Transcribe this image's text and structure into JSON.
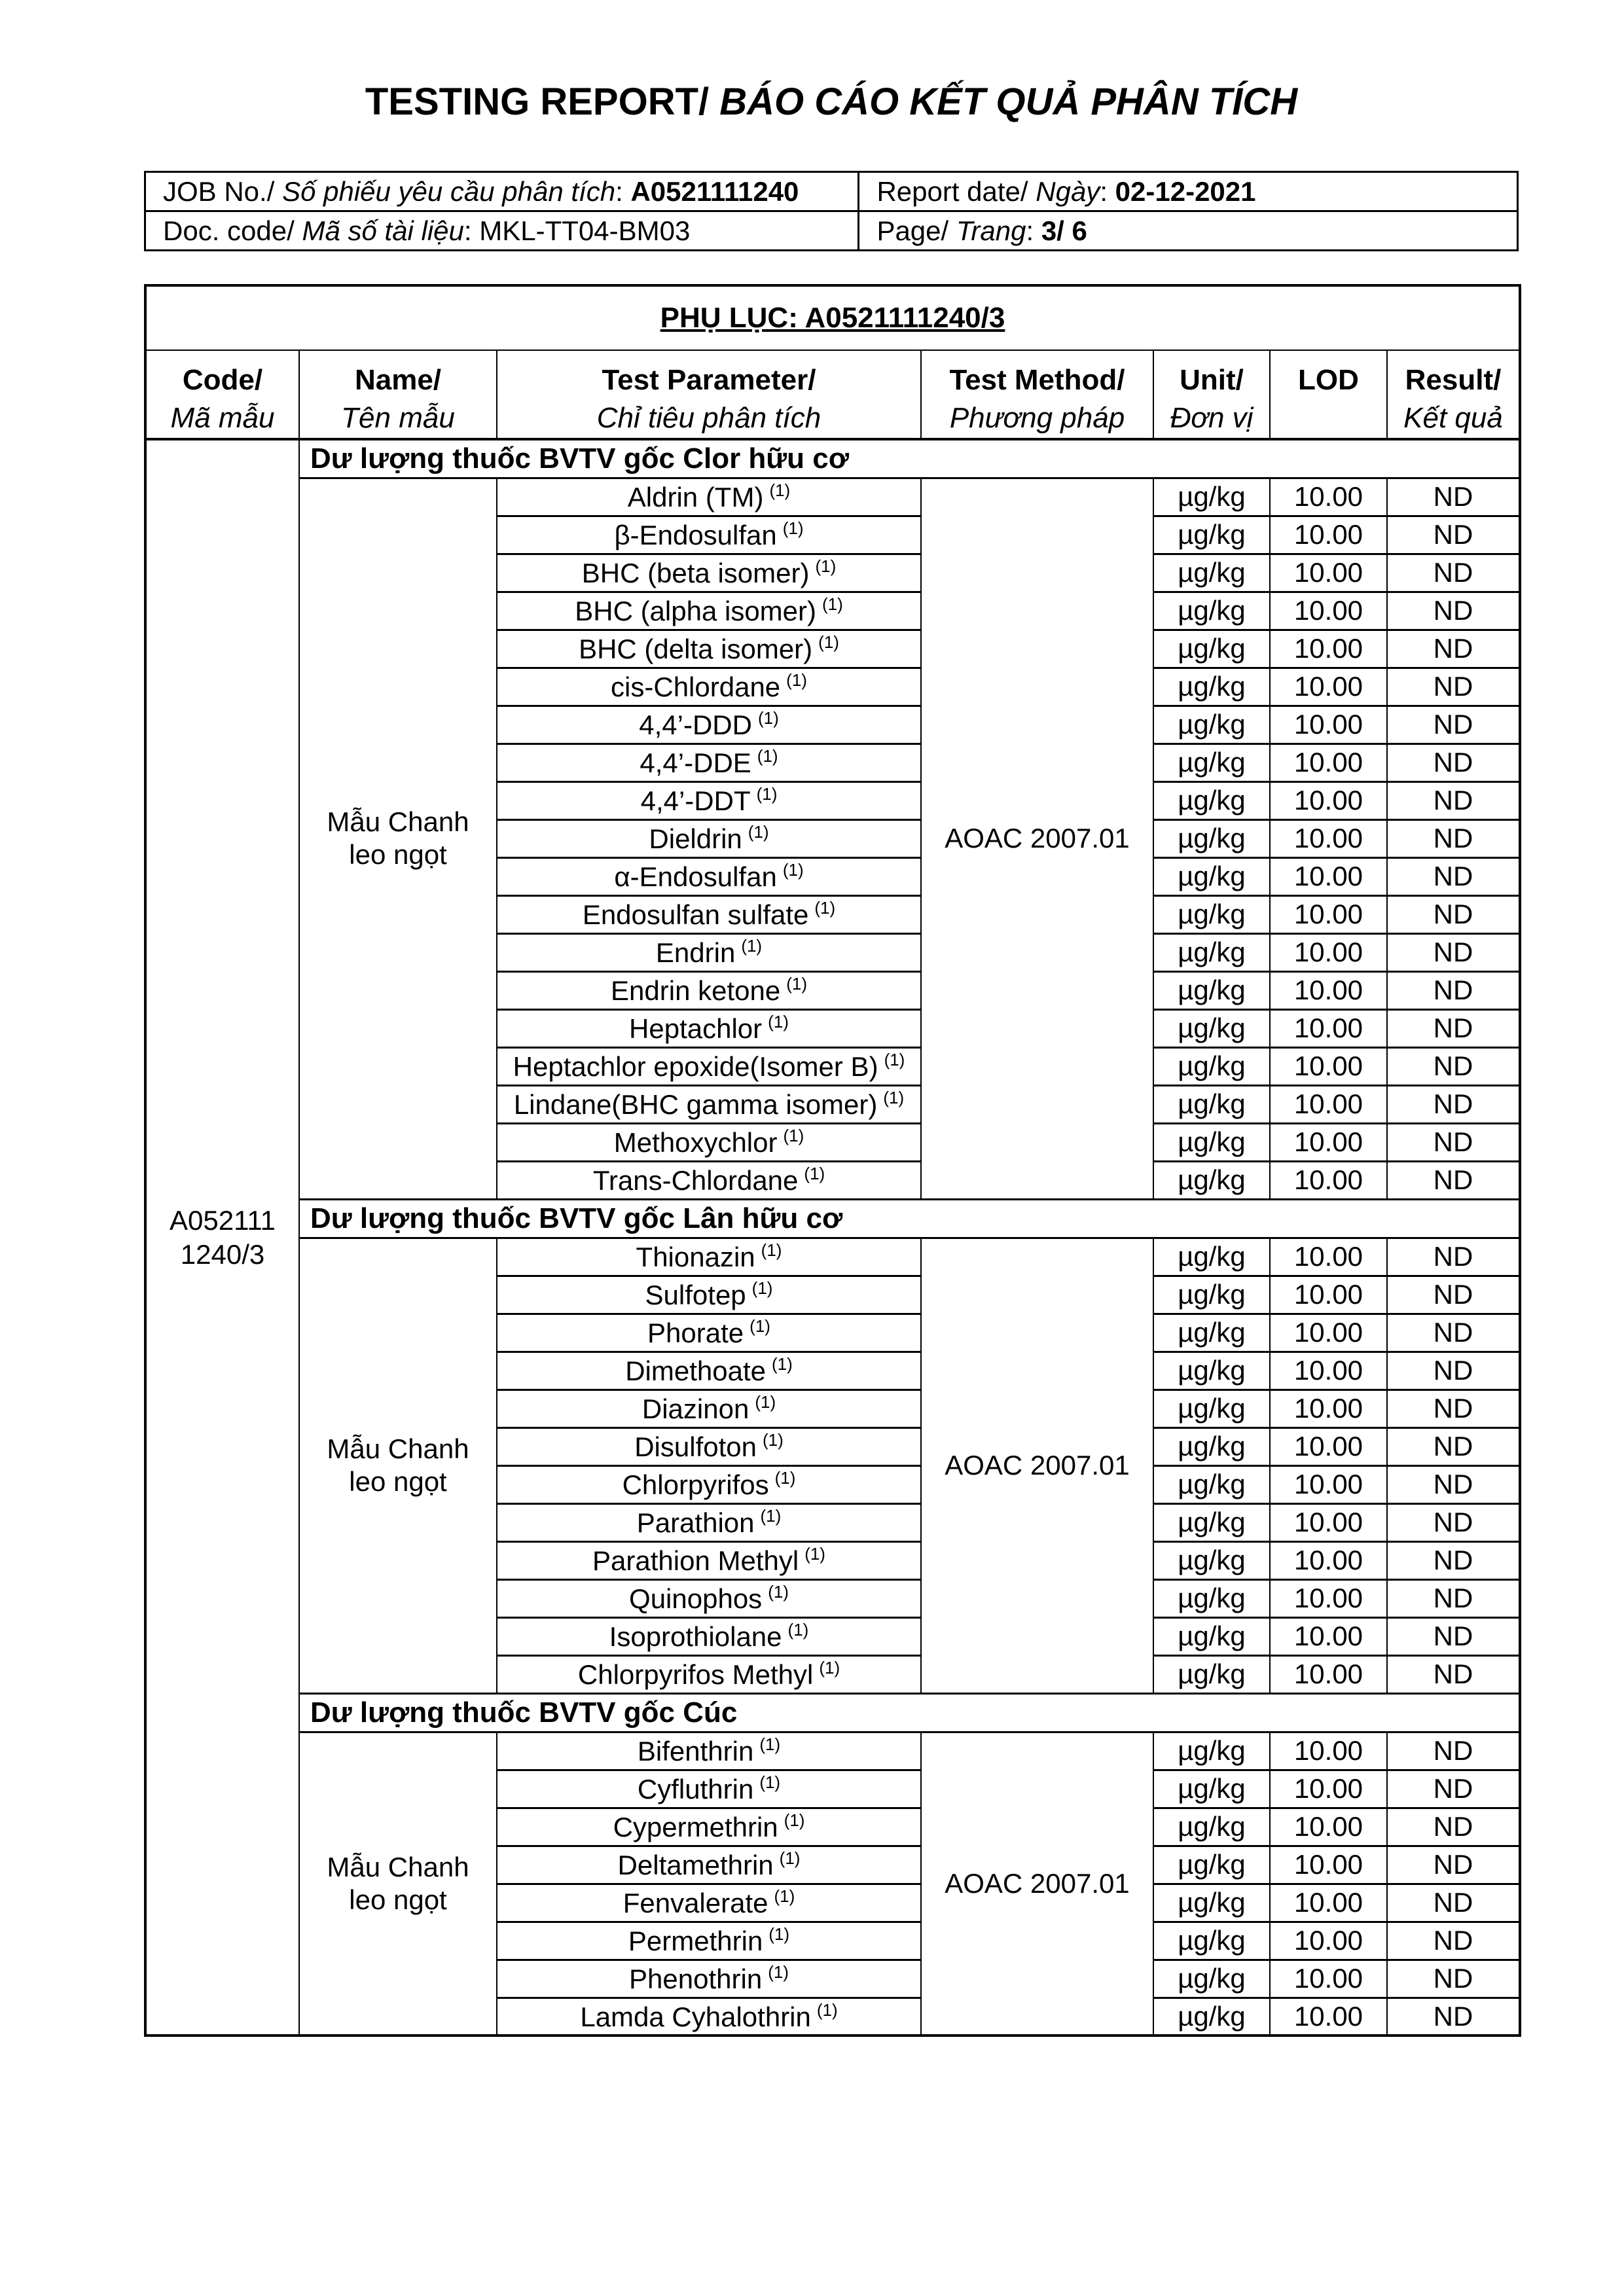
{
  "title": {
    "en": "TESTING REPORT/",
    "vi": "BÁO CÁO KẾT QUẢ PHÂN TÍCH"
  },
  "info": {
    "sep": ": ",
    "job": {
      "en": "JOB No./ ",
      "vi": "Số phiếu yêu cầu phân tích",
      "value": "A0521111240"
    },
    "report_date": {
      "en": "Report date/ ",
      "vi": "Ngày",
      "value": "02-12-2021"
    },
    "doc_code": {
      "en": "Doc. code/ ",
      "vi": "Mã số tài liệu",
      "value": "MKL-TT04-BM03"
    },
    "page_no": {
      "en": "Page/ ",
      "vi": "Trang",
      "value": "3/ 6"
    }
  },
  "appendix_title": "PHỤ LỤC: A0521111240/3",
  "columns": {
    "code": {
      "en": "Code/",
      "vi": "Mã mẫu"
    },
    "name": {
      "en": "Name/",
      "vi": "Tên mẫu"
    },
    "parameter": {
      "en": "Test Parameter/",
      "vi": "Chỉ tiêu phân tích"
    },
    "method": {
      "en": "Test Method/",
      "vi": "Phương pháp"
    },
    "unit": {
      "en": "Unit/",
      "vi": "Đơn vị"
    },
    "lod": {
      "en": "LOD",
      "vi": ""
    },
    "result": {
      "en": "Result/",
      "vi": "Kết quả"
    }
  },
  "sample_code_lines": [
    "A052111",
    "1240/3"
  ],
  "sections": [
    {
      "header": "Dư lượng thuốc BVTV gốc Clor hữu cơ",
      "sample_name": "Mẫu Chanh leo ngọt",
      "method": "AOAC 2007.01",
      "rows": [
        {
          "param": "Aldrin (TM)",
          "sup": "(1)",
          "unit": "µg/kg",
          "lod": "10.00",
          "result": "ND"
        },
        {
          "param": "β-Endosulfan",
          "sup": "(1)",
          "unit": "µg/kg",
          "lod": "10.00",
          "result": "ND"
        },
        {
          "param": "BHC (beta isomer)",
          "sup": "(1)",
          "unit": "µg/kg",
          "lod": "10.00",
          "result": "ND"
        },
        {
          "param": "BHC (alpha isomer)",
          "sup": "(1)",
          "unit": "µg/kg",
          "lod": "10.00",
          "result": "ND"
        },
        {
          "param": "BHC (delta isomer)",
          "sup": "(1)",
          "unit": "µg/kg",
          "lod": "10.00",
          "result": "ND"
        },
        {
          "param": "cis-Chlordane",
          "sup": "(1)",
          "unit": "µg/kg",
          "lod": "10.00",
          "result": "ND"
        },
        {
          "param": "4,4’-DDD",
          "sup": "(1)",
          "unit": "µg/kg",
          "lod": "10.00",
          "result": "ND"
        },
        {
          "param": "4,4’-DDE",
          "sup": "(1)",
          "unit": "µg/kg",
          "lod": "10.00",
          "result": "ND"
        },
        {
          "param": "4,4’-DDT",
          "sup": "(1)",
          "unit": "µg/kg",
          "lod": "10.00",
          "result": "ND"
        },
        {
          "param": "Dieldrin",
          "sup": "(1)",
          "unit": "µg/kg",
          "lod": "10.00",
          "result": "ND"
        },
        {
          "param": "α-Endosulfan",
          "sup": "(1)",
          "unit": "µg/kg",
          "lod": "10.00",
          "result": "ND"
        },
        {
          "param": "Endosulfan sulfate",
          "sup": "(1)",
          "unit": "µg/kg",
          "lod": "10.00",
          "result": "ND"
        },
        {
          "param": "Endrin",
          "sup": "(1)",
          "unit": "µg/kg",
          "lod": "10.00",
          "result": "ND"
        },
        {
          "param": "Endrin ketone",
          "sup": "(1)",
          "unit": "µg/kg",
          "lod": "10.00",
          "result": "ND"
        },
        {
          "param": "Heptachlor",
          "sup": "(1)",
          "unit": "µg/kg",
          "lod": "10.00",
          "result": "ND"
        },
        {
          "param": "Heptachlor epoxide(Isomer B)",
          "sup": "(1)",
          "unit": "µg/kg",
          "lod": "10.00",
          "result": "ND"
        },
        {
          "param": "Lindane(BHC gamma isomer)",
          "sup": "(1)",
          "unit": "µg/kg",
          "lod": "10.00",
          "result": "ND"
        },
        {
          "param": "Methoxychlor",
          "sup": "(1)",
          "unit": "µg/kg",
          "lod": "10.00",
          "result": "ND"
        },
        {
          "param": "Trans-Chlordane",
          "sup": "(1)",
          "unit": "µg/kg",
          "lod": "10.00",
          "result": "ND"
        }
      ]
    },
    {
      "header": "Dư lượng thuốc BVTV gốc Lân hữu cơ",
      "sample_name": "Mẫu Chanh leo ngọt",
      "method": "AOAC 2007.01",
      "rows": [
        {
          "param": "Thionazin",
          "sup": "(1)",
          "unit": "µg/kg",
          "lod": "10.00",
          "result": "ND"
        },
        {
          "param": "Sulfotep",
          "sup": "(1)",
          "unit": "µg/kg",
          "lod": "10.00",
          "result": "ND"
        },
        {
          "param": "Phorate",
          "sup": "(1)",
          "unit": "µg/kg",
          "lod": "10.00",
          "result": "ND"
        },
        {
          "param": "Dimethoate",
          "sup": "(1)",
          "unit": "µg/kg",
          "lod": "10.00",
          "result": "ND"
        },
        {
          "param": "Diazinon",
          "sup": "(1)",
          "unit": "µg/kg",
          "lod": "10.00",
          "result": "ND"
        },
        {
          "param": "Disulfoton",
          "sup": "(1)",
          "unit": "µg/kg",
          "lod": "10.00",
          "result": "ND"
        },
        {
          "param": "Chlorpyrifos",
          "sup": "(1)",
          "unit": "µg/kg",
          "lod": "10.00",
          "result": "ND"
        },
        {
          "param": "Parathion",
          "sup": "(1)",
          "unit": "µg/kg",
          "lod": "10.00",
          "result": "ND"
        },
        {
          "param": "Parathion Methyl",
          "sup": "(1)",
          "unit": "µg/kg",
          "lod": "10.00",
          "result": "ND"
        },
        {
          "param": "Quinophos",
          "sup": "(1)",
          "unit": "µg/kg",
          "lod": "10.00",
          "result": "ND"
        },
        {
          "param": "Isoprothiolane",
          "sup": "(1)",
          "unit": "µg/kg",
          "lod": "10.00",
          "result": "ND"
        },
        {
          "param": "Chlorpyrifos Methyl",
          "sup": "(1)",
          "unit": "µg/kg",
          "lod": "10.00",
          "result": "ND"
        }
      ]
    },
    {
      "header": "Dư lượng thuốc BVTV gốc Cúc",
      "sample_name": "Mẫu Chanh leo ngọt",
      "method": "AOAC 2007.01",
      "rows": [
        {
          "param": "Bifenthrin",
          "sup": "(1)",
          "unit": "µg/kg",
          "lod": "10.00",
          "result": "ND"
        },
        {
          "param": "Cyfluthrin",
          "sup": "(1)",
          "unit": "µg/kg",
          "lod": "10.00",
          "result": "ND"
        },
        {
          "param": "Cypermethrin",
          "sup": "(1)",
          "unit": "µg/kg",
          "lod": "10.00",
          "result": "ND"
        },
        {
          "param": "Deltamethrin",
          "sup": "(1)",
          "unit": "µg/kg",
          "lod": "10.00",
          "result": "ND"
        },
        {
          "param": "Fenvalerate",
          "sup": "(1)",
          "unit": "µg/kg",
          "lod": "10.00",
          "result": "ND"
        },
        {
          "param": "Permethrin",
          "sup": "(1)",
          "unit": "µg/kg",
          "lod": "10.00",
          "result": "ND"
        },
        {
          "param": "Phenothrin",
          "sup": "(1)",
          "unit": "µg/kg",
          "lod": "10.00",
          "result": "ND"
        },
        {
          "param": "Lamda Cyhalothrin",
          "sup": "(1)",
          "unit": "µg/kg",
          "lod": "10.00",
          "result": "ND"
        }
      ]
    }
  ]
}
